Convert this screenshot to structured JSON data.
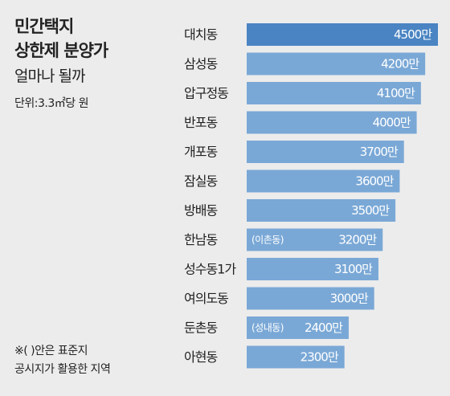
{
  "header": {
    "title": "민간택지\n상한제 분양가",
    "subtitle": "얼마나 될까",
    "unit": "단위:3.3㎡당 원"
  },
  "footnote": "※( )안은 표준지\n공시지가 활용한 지역",
  "colors": {
    "background": "#ececec",
    "bar": "#7aa8d6",
    "bar_highlight": "#4a84c3",
    "text": "#222222",
    "value_text": "#ffffff"
  },
  "chart_data": {
    "type": "bar",
    "orientation": "horizontal",
    "categories": [
      "대치동",
      "삼성동",
      "압구정동",
      "반포동",
      "개포동",
      "잠실동",
      "방배동",
      "한남동",
      "성수동1가",
      "여의도동",
      "둔촌동",
      "아현동"
    ],
    "values": [
      4500,
      4200,
      4100,
      4000,
      3700,
      3600,
      3500,
      3200,
      3100,
      3000,
      2400,
      2300
    ],
    "value_labels": [
      "4500만",
      "4200만",
      "4100만",
      "4000만",
      "3700만",
      "3600만",
      "3500만",
      "3200만",
      "3100만",
      "3000만",
      "2400만",
      "2300만"
    ],
    "annotations": [
      "",
      "",
      "",
      "",
      "",
      "",
      "",
      "(이촌동)",
      "",
      "",
      "(성내동)",
      ""
    ],
    "highlight_index": 0
  }
}
